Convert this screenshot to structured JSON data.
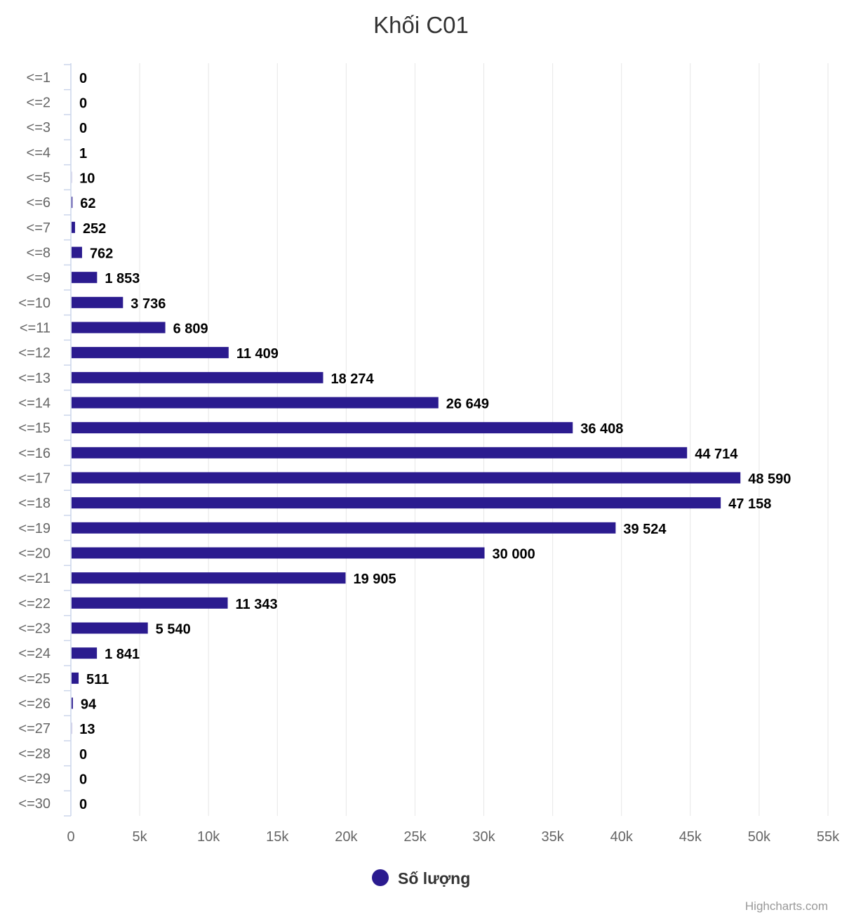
{
  "chart_data": {
    "type": "bar",
    "orientation": "horizontal",
    "title": "Khối C01",
    "categories": [
      "<=1",
      "<=2",
      "<=3",
      "<=4",
      "<=5",
      "<=6",
      "<=7",
      "<=8",
      "<=9",
      "<=10",
      "<=11",
      "<=12",
      "<=13",
      "<=14",
      "<=15",
      "<=16",
      "<=17",
      "<=18",
      "<=19",
      "<=20",
      "<=21",
      "<=22",
      "<=23",
      "<=24",
      "<=25",
      "<=26",
      "<=27",
      "<=28",
      "<=29",
      "<=30"
    ],
    "series": [
      {
        "name": "Số lượng",
        "color": "#2b1b8f",
        "values": [
          0,
          0,
          0,
          1,
          10,
          62,
          252,
          762,
          1853,
          3736,
          6809,
          11409,
          18274,
          26649,
          36408,
          44714,
          48590,
          47158,
          39524,
          30000,
          19905,
          11343,
          5540,
          1841,
          511,
          94,
          13,
          0,
          0,
          0
        ],
        "labels": [
          "0",
          "0",
          "0",
          "1",
          "10",
          "62",
          "252",
          "762",
          "1 853",
          "3 736",
          "6 809",
          "11 409",
          "18 274",
          "26 649",
          "36 408",
          "44 714",
          "48 590",
          "47 158",
          "39 524",
          "30 000",
          "19 905",
          "11 343",
          "5 540",
          "1 841",
          "511",
          "94",
          "13",
          "0",
          "0",
          "0"
        ]
      }
    ],
    "xlim": [
      0,
      55000
    ],
    "ticks": [
      0,
      5000,
      10000,
      15000,
      20000,
      25000,
      30000,
      35000,
      40000,
      45000,
      50000,
      55000
    ],
    "tick_labels": [
      "0",
      "5k",
      "10k",
      "15k",
      "20k",
      "25k",
      "30k",
      "35k",
      "40k",
      "45k",
      "50k",
      "55k"
    ],
    "grid": true,
    "legend_position": "bottom-center",
    "xlabel": "",
    "ylabel": ""
  },
  "credits": "Highcharts.com"
}
